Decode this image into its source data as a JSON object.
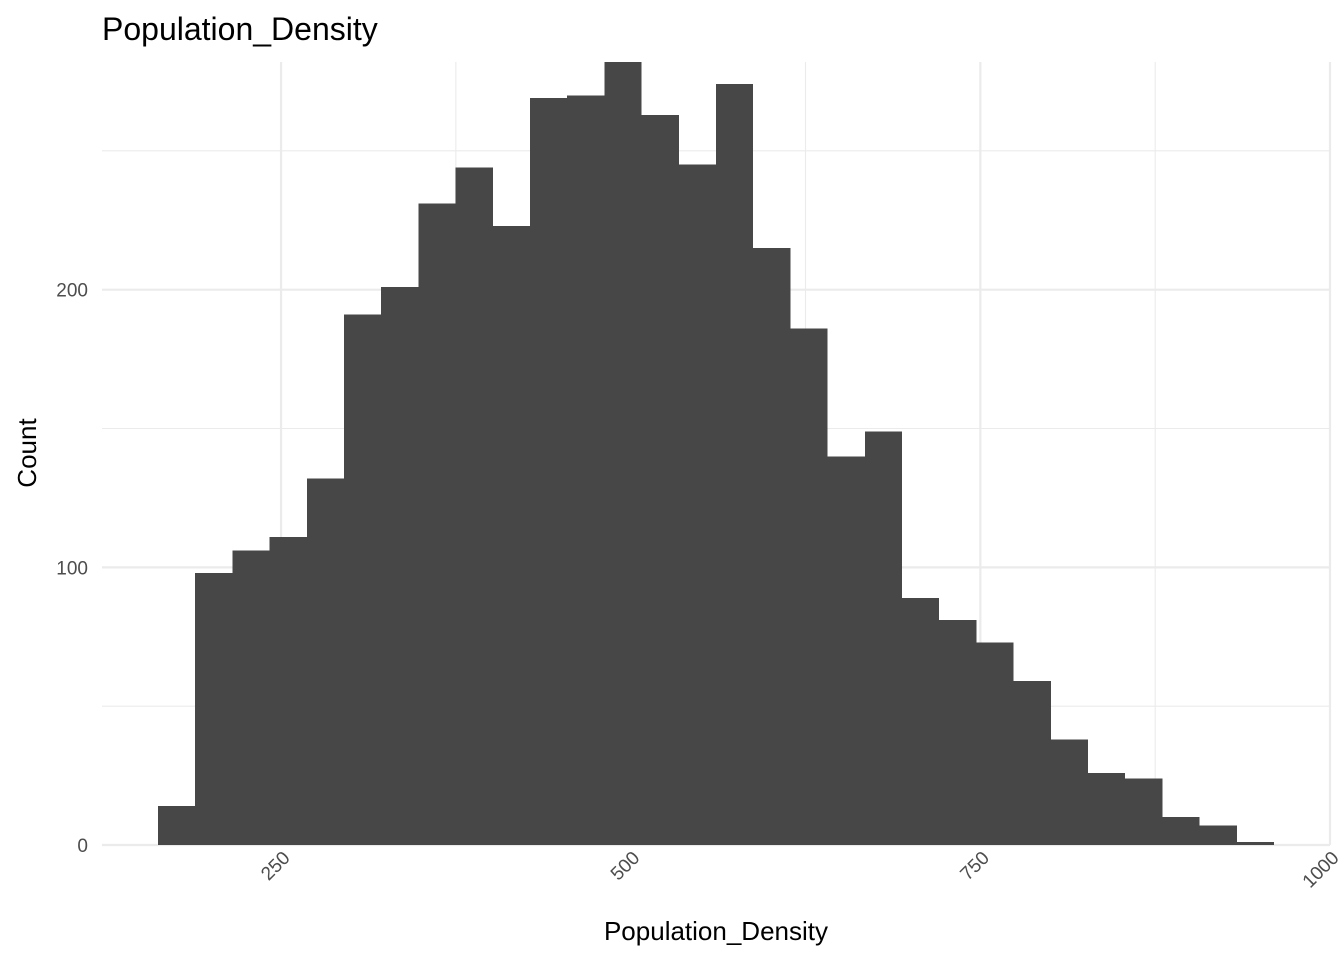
{
  "chart_data": {
    "type": "bar",
    "subtype": "histogram",
    "title": "Population_Density",
    "xlabel": "Population_Density",
    "ylabel": "Count",
    "bar_color": "#474747",
    "background": "#ffffff",
    "grid": true,
    "grid_color": "#ebebeb",
    "xlim": [
      122,
      1000
    ],
    "ylim": [
      0,
      282
    ],
    "x_ticks": [
      250,
      500,
      750,
      1000
    ],
    "y_ticks": [
      0,
      100,
      200
    ],
    "x_minor_ticks": [
      375,
      625,
      875
    ],
    "y_minor_ticks": [
      50,
      150,
      250
    ],
    "bin_width": 26.6,
    "bins": [
      {
        "x0": 162.0,
        "x1": 188.6,
        "count": 14
      },
      {
        "x0": 188.6,
        "x1": 215.2,
        "count": 98
      },
      {
        "x0": 215.2,
        "x1": 241.8,
        "count": 106
      },
      {
        "x0": 241.8,
        "x1": 268.4,
        "count": 111
      },
      {
        "x0": 268.4,
        "x1": 295.0,
        "count": 132
      },
      {
        "x0": 295.0,
        "x1": 321.6,
        "count": 191
      },
      {
        "x0": 321.6,
        "x1": 348.2,
        "count": 201
      },
      {
        "x0": 348.2,
        "x1": 374.8,
        "count": 231
      },
      {
        "x0": 374.8,
        "x1": 401.4,
        "count": 244
      },
      {
        "x0": 401.4,
        "x1": 428.0,
        "count": 223
      },
      {
        "x0": 428.0,
        "x1": 454.6,
        "count": 269
      },
      {
        "x0": 454.6,
        "x1": 481.2,
        "count": 270
      },
      {
        "x0": 481.2,
        "x1": 507.8,
        "count": 282
      },
      {
        "x0": 507.8,
        "x1": 534.4,
        "count": 263
      },
      {
        "x0": 534.4,
        "x1": 561.0,
        "count": 245
      },
      {
        "x0": 561.0,
        "x1": 587.6,
        "count": 274
      },
      {
        "x0": 587.6,
        "x1": 614.2,
        "count": 215
      },
      {
        "x0": 614.2,
        "x1": 640.8,
        "count": 186
      },
      {
        "x0": 640.8,
        "x1": 667.4,
        "count": 140
      },
      {
        "x0": 667.4,
        "x1": 694.0,
        "count": 149
      },
      {
        "x0": 694.0,
        "x1": 720.6,
        "count": 89
      },
      {
        "x0": 720.6,
        "x1": 747.2,
        "count": 81
      },
      {
        "x0": 747.2,
        "x1": 773.8,
        "count": 73
      },
      {
        "x0": 773.8,
        "x1": 800.4,
        "count": 59
      },
      {
        "x0": 800.4,
        "x1": 827.0,
        "count": 38
      },
      {
        "x0": 827.0,
        "x1": 853.6,
        "count": 26
      },
      {
        "x0": 853.6,
        "x1": 880.2,
        "count": 24
      },
      {
        "x0": 880.2,
        "x1": 906.8,
        "count": 10
      },
      {
        "x0": 906.8,
        "x1": 933.4,
        "count": 7
      },
      {
        "x0": 933.4,
        "x1": 960.0,
        "count": 1
      }
    ]
  }
}
